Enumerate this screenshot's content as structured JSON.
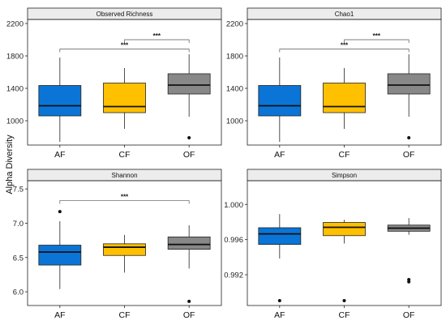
{
  "figure": {
    "ylabel": "Alpha Diversity"
  },
  "chart_data": [
    {
      "type": "boxplot",
      "title": "Observed Richness",
      "categories": [
        "AF",
        "CF",
        "OF"
      ],
      "ylim": [
        700,
        2250
      ],
      "yticks": [
        1000,
        1400,
        1800,
        2200
      ],
      "ytick_labels": [
        "1000",
        "1400",
        "1800",
        "2200"
      ],
      "boxes": [
        {
          "category": "AF",
          "color": "#0a75d6",
          "min": 740,
          "q1": 1060,
          "median": 1185,
          "q3": 1435,
          "max": 1780,
          "outliers": []
        },
        {
          "category": "CF",
          "color": "#ffc000",
          "min": 900,
          "q1": 1100,
          "median": 1175,
          "q3": 1465,
          "max": 1650,
          "outliers": []
        },
        {
          "category": "OF",
          "color": "#888888",
          "min": 1050,
          "q1": 1330,
          "median": 1440,
          "q3": 1580,
          "max": 1820,
          "outliers": [
            790
          ]
        }
      ],
      "significance": [
        {
          "from": "CF",
          "to": "OF",
          "y": 2000,
          "label": "***"
        },
        {
          "from": "AF",
          "to": "OF",
          "y": 1885,
          "label": "***"
        }
      ]
    },
    {
      "type": "boxplot",
      "title": "Chao1",
      "categories": [
        "AF",
        "CF",
        "OF"
      ],
      "ylim": [
        700,
        2250
      ],
      "yticks": [
        1000,
        1400,
        1800,
        2200
      ],
      "ytick_labels": [
        "1000",
        "1400",
        "1800",
        "2200"
      ],
      "boxes": [
        {
          "category": "AF",
          "color": "#0a75d6",
          "min": 740,
          "q1": 1060,
          "median": 1185,
          "q3": 1435,
          "max": 1780,
          "outliers": []
        },
        {
          "category": "CF",
          "color": "#ffc000",
          "min": 900,
          "q1": 1100,
          "median": 1175,
          "q3": 1465,
          "max": 1650,
          "outliers": []
        },
        {
          "category": "OF",
          "color": "#888888",
          "min": 1050,
          "q1": 1330,
          "median": 1440,
          "q3": 1580,
          "max": 1820,
          "outliers": [
            790
          ]
        }
      ],
      "significance": [
        {
          "from": "CF",
          "to": "OF",
          "y": 2000,
          "label": "***"
        },
        {
          "from": "AF",
          "to": "OF",
          "y": 1885,
          "label": "***"
        }
      ]
    },
    {
      "type": "boxplot",
      "title": "Shannon",
      "categories": [
        "AF",
        "CF",
        "OF"
      ],
      "ylim": [
        5.8,
        7.62
      ],
      "yticks": [
        6.0,
        6.5,
        7.0,
        7.5
      ],
      "ytick_labels": [
        "6.0",
        "6.5",
        "7.0",
        "7.5"
      ],
      "boxes": [
        {
          "category": "AF",
          "color": "#0a75d6",
          "min": 6.04,
          "q1": 6.39,
          "median": 6.58,
          "q3": 6.68,
          "max": 7.03,
          "outliers": [
            7.17
          ]
        },
        {
          "category": "CF",
          "color": "#ffc000",
          "min": 6.28,
          "q1": 6.53,
          "median": 6.65,
          "q3": 6.7,
          "max": 6.83,
          "outliers": []
        },
        {
          "category": "OF",
          "color": "#888888",
          "min": 6.34,
          "q1": 6.62,
          "median": 6.69,
          "q3": 6.8,
          "max": 6.97,
          "outliers": [
            5.86
          ]
        }
      ],
      "significance": [
        {
          "from": "AF",
          "to": "OF",
          "y": 7.33,
          "label": "***"
        }
      ]
    },
    {
      "type": "boxplot",
      "title": "Simpson",
      "categories": [
        "AF",
        "CF",
        "OF"
      ],
      "ylim": [
        0.9885,
        1.0027
      ],
      "yticks": [
        0.992,
        0.996,
        1.0
      ],
      "ytick_labels": [
        "0.992",
        "0.996",
        "1.000"
      ],
      "boxes": [
        {
          "category": "AF",
          "color": "#0a75d6",
          "min": 0.99385,
          "q1": 0.99545,
          "median": 0.99665,
          "q3": 0.99735,
          "max": 0.9989,
          "outliers": [
            0.98905
          ]
        },
        {
          "category": "CF",
          "color": "#ffc000",
          "min": 0.99555,
          "q1": 0.99645,
          "median": 0.9974,
          "q3": 0.99795,
          "max": 0.99825,
          "outliers": [
            0.98905
          ]
        },
        {
          "category": "OF",
          "color": "#888888",
          "min": 0.99655,
          "q1": 0.99695,
          "median": 0.9973,
          "q3": 0.99765,
          "max": 0.99845,
          "outliers": [
            0.99145,
            0.9912
          ]
        }
      ],
      "significance": []
    }
  ]
}
